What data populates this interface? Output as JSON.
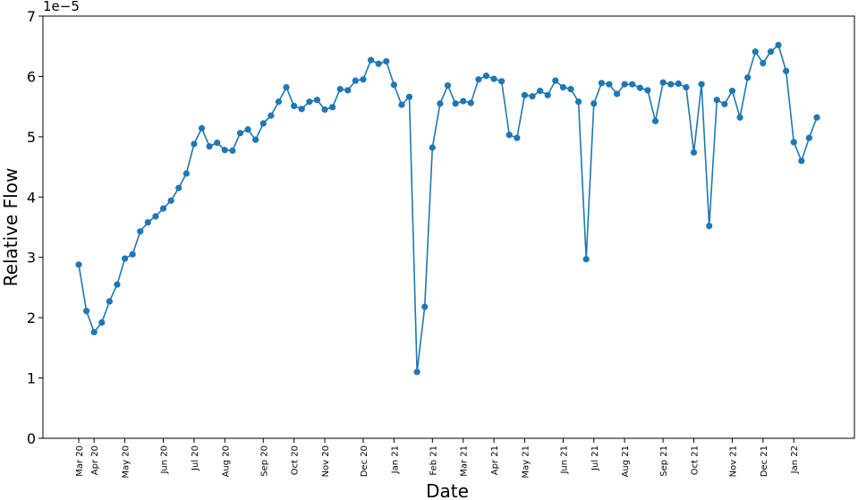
{
  "chart_data": {
    "type": "line",
    "y_offset_label": "1e−5",
    "xlabel": "Date",
    "ylabel": "Relative Flow",
    "color": "#1f77b4",
    "categories": [
      "Mar 20",
      null,
      "Apr 20",
      null,
      null,
      null,
      "May 20",
      null,
      null,
      null,
      null,
      "Jun 20",
      null,
      null,
      null,
      "Jul 20",
      null,
      null,
      null,
      "Aug 20",
      null,
      null,
      null,
      null,
      "Sep 20",
      null,
      null,
      null,
      "Oct 20",
      null,
      null,
      null,
      "Nov 20",
      null,
      null,
      null,
      null,
      "Dec 20",
      null,
      null,
      null,
      "Jan 21",
      null,
      null,
      null,
      null,
      "Feb 21",
      null,
      null,
      null,
      "Mar 21",
      null,
      null,
      null,
      "Apr 21",
      null,
      null,
      null,
      "May 21",
      null,
      null,
      null,
      null,
      "Jun 21",
      null,
      null,
      null,
      "Jul 21",
      null,
      null,
      null,
      "Aug 21",
      null,
      null,
      null,
      null,
      "Sep 21",
      null,
      null,
      null,
      "Oct 21",
      null,
      null,
      null,
      null,
      "Nov 21",
      null,
      null,
      null,
      "Dec 21",
      null,
      null,
      null,
      "Jan 22",
      null,
      null,
      null
    ],
    "values": [
      2.88,
      2.11,
      1.76,
      1.92,
      2.27,
      2.55,
      2.98,
      3.05,
      3.43,
      3.58,
      3.68,
      3.81,
      3.94,
      4.15,
      4.39,
      4.88,
      5.14,
      4.84,
      4.9,
      4.78,
      4.77,
      5.06,
      5.12,
      4.95,
      5.22,
      5.35,
      5.58,
      5.82,
      5.51,
      5.46,
      5.58,
      5.61,
      5.45,
      5.49,
      5.79,
      5.77,
      5.93,
      5.95,
      6.27,
      6.21,
      6.25,
      5.86,
      5.53,
      5.66,
      1.1,
      2.18,
      4.82,
      5.55,
      5.85,
      5.55,
      5.59,
      5.56,
      5.95,
      6.01,
      5.96,
      5.92,
      5.03,
      4.98,
      5.69,
      5.67,
      5.76,
      5.69,
      5.93,
      5.82,
      5.79,
      5.58,
      2.97,
      5.55,
      5.89,
      5.87,
      5.71,
      5.87,
      5.87,
      5.81,
      5.77,
      5.26,
      5.9,
      5.87,
      5.88,
      5.82,
      4.74,
      5.87,
      3.52,
      5.61,
      5.54,
      5.76,
      5.32,
      5.98,
      6.41,
      6.22,
      6.41,
      6.52,
      6.09,
      4.91,
      4.6,
      4.98,
      5.32
    ],
    "ylim": [
      0,
      7
    ],
    "yticks": [
      0,
      1,
      2,
      3,
      4,
      5,
      6,
      7
    ]
  }
}
